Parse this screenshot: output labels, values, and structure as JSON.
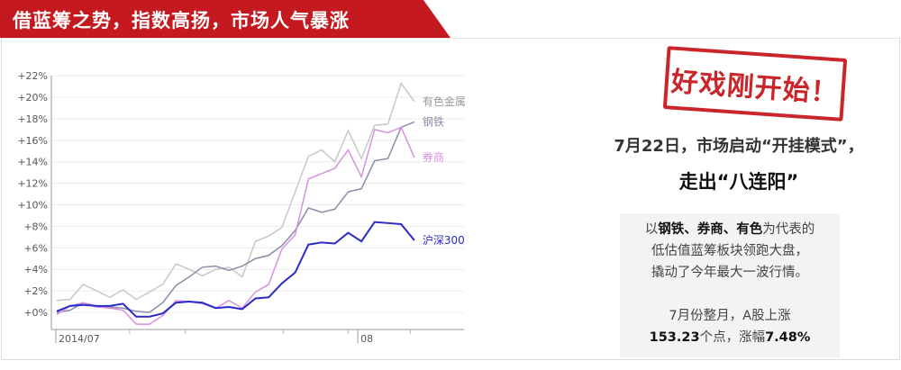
{
  "banner": {
    "title": "借蓝筹之势，指数高扬，市场人气暴涨"
  },
  "stamp": {
    "text": "好戏刚开始！"
  },
  "headline": {
    "line1": "7月22日，市场启动“开挂模式”，",
    "line2": "走出“八连阳”"
  },
  "description": {
    "p1_pre": "以",
    "p1_bold": "钢铁、券商、有色",
    "p1_post": "为代表的",
    "p1_line2": "低估值蓝筹板块领跑大盘，",
    "p1_line3": "撬动了今年最大一波行情。",
    "p2_line1": "7月份整月，A股上涨",
    "p2_bold1": "153.23",
    "p2_mid": "个点，涨幅",
    "p2_bold2": "7.48%"
  },
  "chart_data": {
    "type": "line",
    "xlabel": "",
    "ylabel": "",
    "ylim": [
      -1.5,
      22
    ],
    "yticks": [
      "+0%",
      "+2%",
      "+4%",
      "+6%",
      "+8%",
      "+10%",
      "+12%",
      "+14%",
      "+16%",
      "+18%",
      "+20%",
      "+22%"
    ],
    "ytick_values": [
      0,
      2,
      4,
      6,
      8,
      10,
      12,
      14,
      16,
      18,
      20,
      22
    ],
    "xticks": [
      {
        "label": "2014/07",
        "index": 0
      },
      {
        "label": "08",
        "index": 22.8
      }
    ],
    "grid": true,
    "series": [
      {
        "name": "有色金属",
        "color": "#c8c8c8",
        "width": 1.5,
        "values": [
          1.1,
          1.2,
          2.6,
          2.0,
          1.4,
          2.1,
          1.2,
          1.9,
          2.6,
          4.5,
          4.0,
          3.4,
          4.0,
          4.2,
          3.3,
          6.6,
          7.1,
          7.9,
          11.2,
          14.5,
          15.1,
          14.0,
          16.9,
          14.3,
          17.4,
          17.5,
          21.3,
          19.6
        ]
      },
      {
        "name": "钢铁",
        "color": "#8c8ca8",
        "width": 1.5,
        "values": [
          0,
          0.2,
          0.9,
          0.6,
          0.5,
          0.4,
          0.1,
          0,
          0.9,
          2.5,
          3.3,
          4.2,
          4.3,
          3.9,
          4.3,
          5.0,
          5.3,
          6.2,
          7.6,
          9.7,
          9.3,
          9.6,
          11.2,
          11.5,
          14.1,
          14.3,
          17.2,
          17.7
        ]
      },
      {
        "name": "券商",
        "color": "#d890e0",
        "width": 1.5,
        "values": [
          -0.2,
          0.6,
          0.9,
          0.5,
          0.4,
          0.2,
          -1.1,
          -1.1,
          -0.3,
          1.1,
          1.0,
          0.8,
          0.4,
          1.1,
          0.4,
          1.9,
          2.6,
          5.9,
          7.2,
          12.4,
          12.9,
          13.4,
          15.1,
          12.6,
          17.0,
          16.7,
          17.2,
          14.4
        ]
      },
      {
        "name": "沪深300",
        "color": "#2a2ac8",
        "width": 2,
        "values": [
          0.1,
          0.6,
          0.7,
          0.6,
          0.6,
          0.8,
          -0.4,
          -0.4,
          -0.1,
          0.9,
          1.0,
          0.9,
          0.4,
          0.5,
          0.3,
          1.3,
          1.4,
          2.7,
          3.7,
          6.3,
          6.5,
          6.4,
          7.4,
          6.6,
          8.4,
          8.3,
          8.2,
          6.7
        ]
      }
    ]
  }
}
